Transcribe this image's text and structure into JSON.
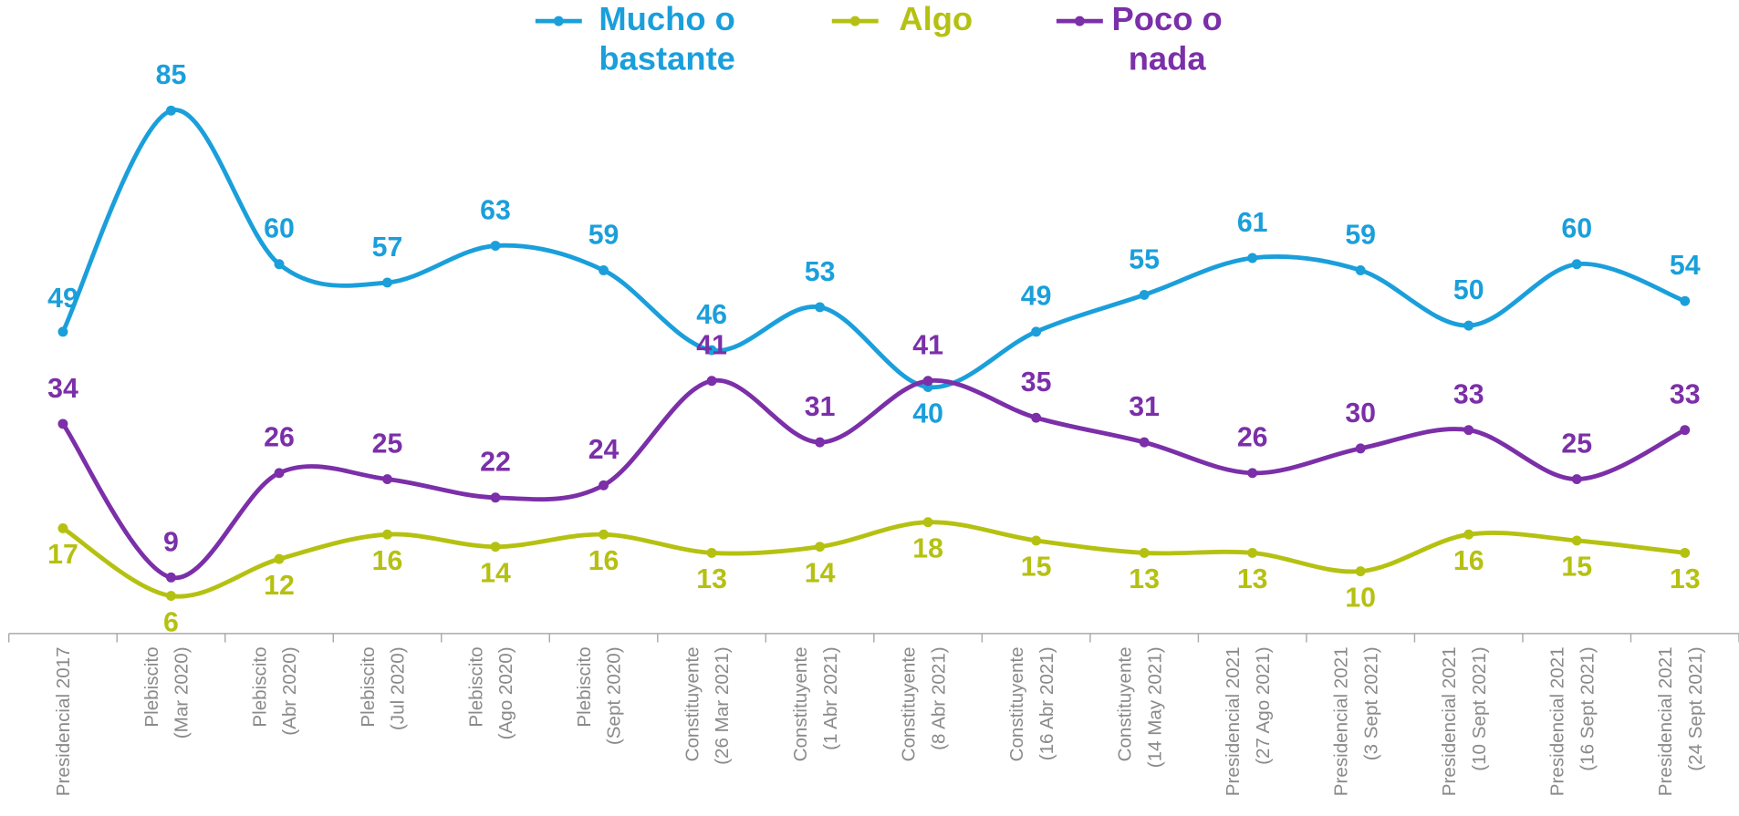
{
  "chart_data": {
    "type": "line",
    "categories": [
      [
        "Presidencial 2017"
      ],
      [
        "Plebiscito",
        "(Mar 2020)"
      ],
      [
        "Plebiscito",
        "(Abr 2020)"
      ],
      [
        "Plebiscito",
        "(Jul 2020)"
      ],
      [
        "Plebiscito",
        "(Ago 2020)"
      ],
      [
        "Plebiscito",
        "(Sept 2020)"
      ],
      [
        "Constituyente",
        "(26 Mar 2021)"
      ],
      [
        "Constituyente",
        "(1 Abr 2021)"
      ],
      [
        "Constituyente",
        "(8 Abr 2021)"
      ],
      [
        "Constituyente",
        "(16 Abr 2021)"
      ],
      [
        "Constituyente",
        "(14 May 2021)"
      ],
      [
        "Presidencial 2021",
        "(27 Ago 2021)"
      ],
      [
        "Presidencial 2021",
        "(3 Sept 2021)"
      ],
      [
        "Presidencial 2021",
        "(10 Sept 2021)"
      ],
      [
        "Presidencial 2021",
        "(16 Sept 2021)"
      ],
      [
        "Presidencial 2021",
        "(24 Sept 2021)"
      ]
    ],
    "series": [
      {
        "name": "Mucho o bastante",
        "color": "#1a9fdb",
        "values": [
          49,
          85,
          60,
          57,
          63,
          59,
          46,
          53,
          40,
          49,
          55,
          61,
          59,
          50,
          60,
          54
        ]
      },
      {
        "name": "Algo",
        "color": "#b5c111",
        "values": [
          17,
          6,
          12,
          16,
          14,
          16,
          13,
          14,
          18,
          15,
          13,
          13,
          10,
          16,
          15,
          13
        ]
      },
      {
        "name": "Poco o nada",
        "color": "#7b2fa8",
        "values": [
          34,
          9,
          26,
          25,
          22,
          24,
          41,
          31,
          41,
          35,
          31,
          26,
          30,
          33,
          25,
          33
        ]
      }
    ],
    "ylim": [
      0,
      100
    ],
    "legend": "top"
  }
}
